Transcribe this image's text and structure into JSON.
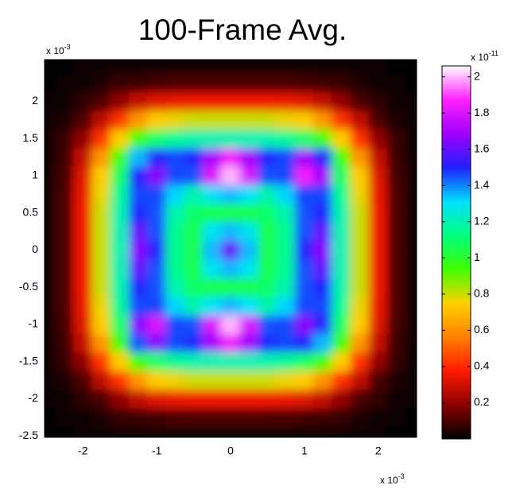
{
  "chart_data": {
    "type": "heatmap",
    "title": "100-Frame Avg.",
    "x_exponent_label": {
      "base": "x 10",
      "exponent": "-3"
    },
    "y_exponent_label": {
      "base": "x 10",
      "exponent": "-3"
    },
    "colorbar_exponent_label": {
      "base": "x 10",
      "exponent": "-11"
    },
    "x": [
      -2.5,
      -2.25,
      -2,
      -1.75,
      -1.5,
      -1.25,
      -1,
      -0.75,
      -0.5,
      -0.25,
      0,
      0.25,
      0.5,
      0.75,
      1,
      1.25,
      1.5,
      1.75,
      2,
      2.25,
      2.5
    ],
    "y": [
      -2.5,
      -2.25,
      -2,
      -1.75,
      -1.5,
      -1.25,
      -1,
      -0.75,
      -0.5,
      -0.25,
      0,
      0.25,
      0.5,
      0.75,
      1,
      1.25,
      1.5,
      1.75,
      2,
      2.25,
      2.5
    ],
    "z": [
      [
        0,
        0,
        0.01,
        0.01,
        0.02,
        0.02,
        0.02,
        0.02,
        0.02,
        0.02,
        0.02,
        0.02,
        0.02,
        0.02,
        0.02,
        0.02,
        0.02,
        0.01,
        0.01,
        0,
        0
      ],
      [
        0,
        0.01,
        0.02,
        0.04,
        0.07,
        0.08,
        0.09,
        0.1,
        0.1,
        0.1,
        0.1,
        0.1,
        0.1,
        0.1,
        0.09,
        0.08,
        0.07,
        0.04,
        0.02,
        0.01,
        0
      ],
      [
        0.01,
        0.02,
        0.06,
        0.1,
        0.2,
        0.28,
        0.32,
        0.34,
        0.35,
        0.35,
        0.35,
        0.35,
        0.35,
        0.34,
        0.32,
        0.28,
        0.2,
        0.1,
        0.06,
        0.02,
        0.01
      ],
      [
        0.01,
        0.04,
        0.1,
        0.27,
        0.42,
        0.61,
        0.74,
        0.77,
        0.8,
        0.8,
        0.8,
        0.8,
        0.8,
        0.77,
        0.74,
        0.61,
        0.42,
        0.27,
        0.1,
        0.04,
        0.01
      ],
      [
        0.02,
        0.07,
        0.2,
        0.42,
        0.74,
        0.94,
        1.09,
        1.16,
        1.19,
        1.2,
        1.2,
        1.2,
        1.19,
        1.16,
        1.09,
        0.94,
        0.74,
        0.42,
        0.2,
        0.07,
        0.02
      ],
      [
        0.02,
        0.08,
        0.28,
        0.61,
        0.94,
        1.45,
        1.65,
        1.46,
        1.49,
        1.7,
        1.85,
        1.7,
        1.49,
        1.46,
        1.5,
        1.35,
        0.94,
        0.61,
        0.28,
        0.08,
        0.02
      ],
      [
        0.02,
        0.09,
        0.32,
        0.74,
        1.09,
        1.65,
        1.8,
        1.46,
        1.45,
        1.8,
        2.0,
        1.8,
        1.45,
        1.46,
        1.65,
        1.5,
        1.09,
        0.74,
        0.32,
        0.09,
        0.02
      ],
      [
        0.02,
        0.1,
        0.34,
        0.77,
        1.16,
        1.46,
        1.46,
        1.32,
        1.19,
        1.3,
        1.35,
        1.3,
        1.19,
        1.32,
        1.46,
        1.46,
        1.16,
        0.77,
        0.34,
        0.1,
        0.02
      ],
      [
        0.02,
        0.1,
        0.35,
        0.8,
        1.19,
        1.49,
        1.45,
        1.19,
        1.09,
        1.05,
        1.05,
        1.05,
        1.09,
        1.19,
        1.45,
        1.49,
        1.19,
        0.8,
        0.35,
        0.1,
        0.02
      ],
      [
        0.02,
        0.1,
        0.35,
        0.8,
        1.2,
        1.6,
        1.45,
        1.15,
        1.05,
        1.29,
        1.35,
        1.29,
        1.05,
        1.15,
        1.45,
        1.6,
        1.2,
        0.8,
        0.35,
        0.1,
        0.02
      ],
      [
        0.02,
        0.1,
        0.35,
        0.8,
        1.2,
        1.65,
        1.5,
        1.15,
        1.05,
        1.35,
        1.6,
        1.35,
        1.05,
        1.15,
        1.5,
        1.65,
        1.2,
        0.8,
        0.35,
        0.1,
        0.02
      ],
      [
        0.02,
        0.1,
        0.35,
        0.8,
        1.2,
        1.6,
        1.45,
        1.15,
        1.05,
        1.29,
        1.35,
        1.29,
        1.05,
        1.15,
        1.45,
        1.6,
        1.2,
        0.8,
        0.35,
        0.1,
        0.02
      ],
      [
        0.02,
        0.1,
        0.35,
        0.8,
        1.19,
        1.49,
        1.45,
        1.19,
        1.09,
        1.05,
        1.05,
        1.05,
        1.09,
        1.19,
        1.45,
        1.49,
        1.19,
        0.8,
        0.35,
        0.1,
        0.02
      ],
      [
        0.02,
        0.1,
        0.34,
        0.77,
        1.16,
        1.46,
        1.46,
        1.32,
        1.19,
        1.3,
        1.35,
        1.3,
        1.19,
        1.32,
        1.46,
        1.46,
        1.16,
        0.77,
        0.34,
        0.1,
        0.02
      ],
      [
        0.02,
        0.09,
        0.32,
        0.74,
        1.09,
        1.5,
        1.65,
        1.46,
        1.45,
        1.8,
        2.0,
        1.8,
        1.45,
        1.46,
        1.85,
        1.7,
        1.09,
        0.74,
        0.32,
        0.09,
        0.02
      ],
      [
        0.02,
        0.08,
        0.28,
        0.61,
        0.94,
        1.35,
        1.5,
        1.46,
        1.49,
        1.7,
        1.85,
        1.7,
        1.49,
        1.46,
        1.7,
        1.5,
        0.94,
        0.61,
        0.28,
        0.08,
        0.02
      ],
      [
        0.02,
        0.07,
        0.2,
        0.42,
        0.74,
        0.94,
        1.09,
        1.16,
        1.19,
        1.2,
        1.2,
        1.2,
        1.19,
        1.16,
        1.09,
        0.94,
        0.74,
        0.42,
        0.2,
        0.07,
        0.02
      ],
      [
        0.01,
        0.04,
        0.1,
        0.27,
        0.42,
        0.61,
        0.74,
        0.77,
        0.8,
        0.8,
        0.8,
        0.8,
        0.8,
        0.77,
        0.74,
        0.61,
        0.42,
        0.27,
        0.1,
        0.04,
        0.01
      ],
      [
        0.01,
        0.02,
        0.06,
        0.1,
        0.2,
        0.28,
        0.32,
        0.34,
        0.35,
        0.35,
        0.35,
        0.35,
        0.35,
        0.34,
        0.32,
        0.28,
        0.2,
        0.1,
        0.06,
        0.02,
        0.01
      ],
      [
        0,
        0.01,
        0.02,
        0.04,
        0.07,
        0.08,
        0.09,
        0.1,
        0.1,
        0.1,
        0.1,
        0.1,
        0.1,
        0.1,
        0.09,
        0.08,
        0.07,
        0.04,
        0.02,
        0.01,
        0
      ],
      [
        0,
        0,
        0.01,
        0.01,
        0.02,
        0.02,
        0.02,
        0.02,
        0.02,
        0.02,
        0.02,
        0.02,
        0.02,
        0.02,
        0.02,
        0.02,
        0.02,
        0.01,
        0.01,
        0,
        0
      ]
    ],
    "xlim": [
      -2.52,
      2.52
    ],
    "ylim": [
      -2.52,
      2.56
    ],
    "xticks": [
      -2,
      -1,
      0,
      1,
      2
    ],
    "yticks": [
      -2.5,
      -2,
      -1.5,
      -1,
      -0.5,
      0,
      0.5,
      1,
      1.5,
      2
    ],
    "clim": [
      0,
      2.06
    ],
    "cticks": [
      0.2,
      0.4,
      0.6,
      0.8,
      1,
      1.2,
      1.4,
      1.6,
      1.8,
      2
    ],
    "colormap": [
      "#000000",
      "#8b0000",
      "#ff1a00",
      "#ff8000",
      "#ffd000",
      "#40ff00",
      "#00ff80",
      "#00e0ff",
      "#2020ff",
      "#a000ff",
      "#ff20ff",
      "#ffffff"
    ]
  }
}
